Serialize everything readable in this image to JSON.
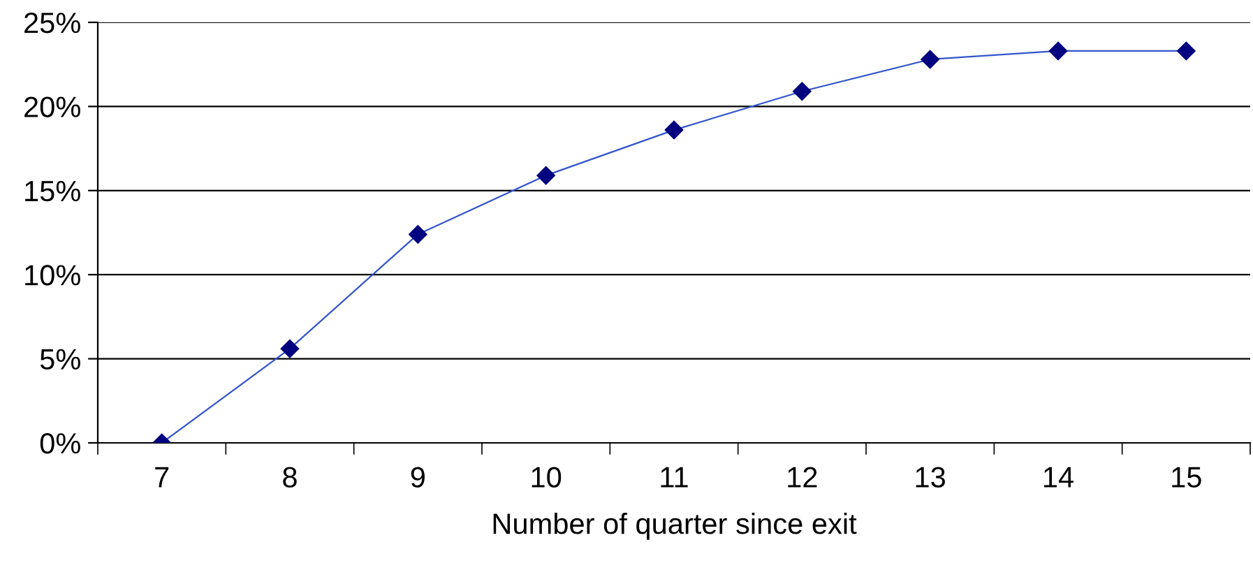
{
  "chart_data": {
    "type": "line",
    "xlabel": "Number of quarter since exit",
    "categories": [
      "7",
      "8",
      "9",
      "10",
      "11",
      "12",
      "13",
      "14",
      "15"
    ],
    "series": [
      {
        "color": "#000080",
        "values": [
          0,
          5.6,
          12.4,
          15.9,
          18.6,
          20.9,
          22.8,
          23.3,
          23.3
        ]
      }
    ],
    "ylim": [
      0,
      25
    ],
    "yticks": [
      {
        "value": 0,
        "label": "0%"
      },
      {
        "value": 5,
        "label": "5%"
      },
      {
        "value": 10,
        "label": "10%"
      },
      {
        "value": 15,
        "label": "15%"
      },
      {
        "value": 20,
        "label": "20%"
      },
      {
        "value": 25,
        "label": "25%"
      }
    ],
    "grid": "y",
    "marker": "diamond",
    "line_style": "solid"
  }
}
